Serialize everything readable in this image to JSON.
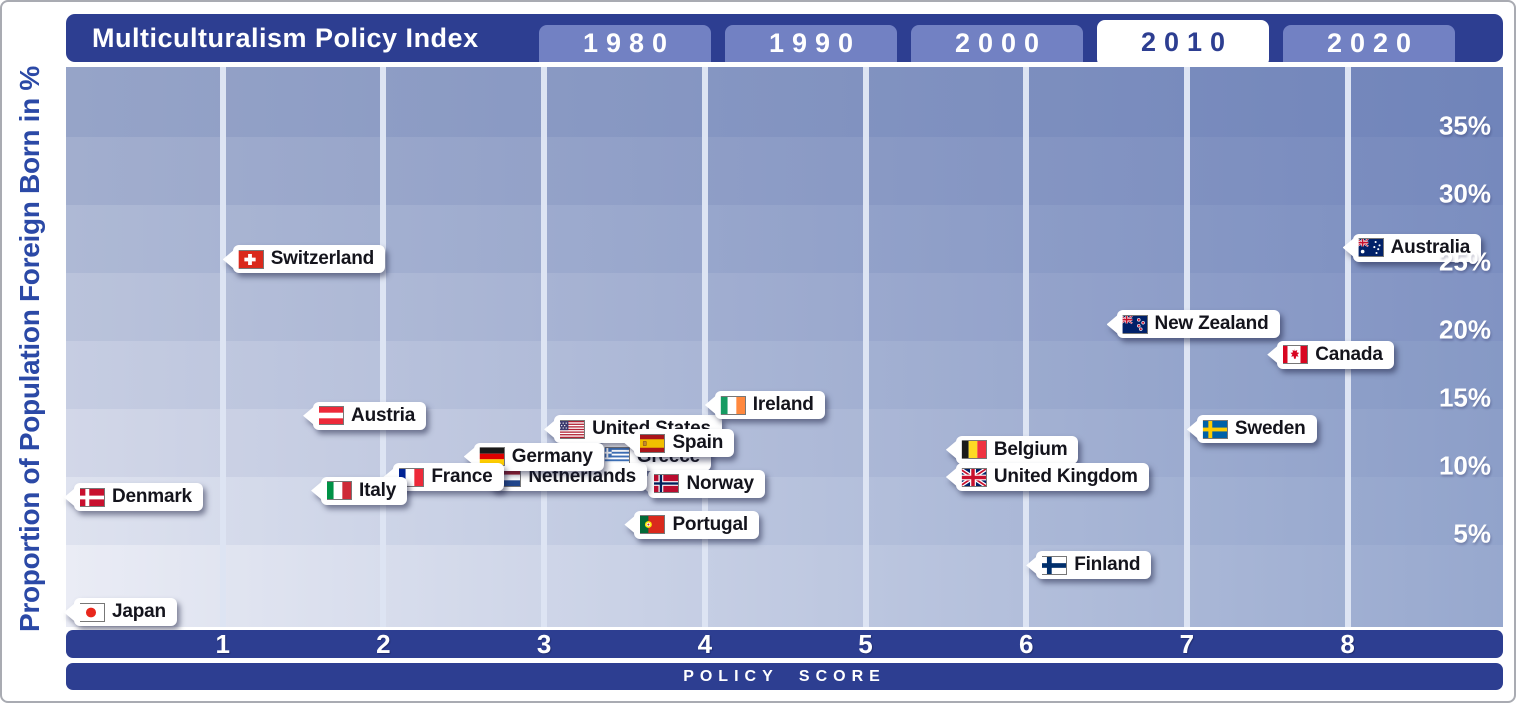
{
  "header": {
    "title": "Multiculturalism Policy Index",
    "tabs": [
      {
        "label": "1980",
        "selected": false
      },
      {
        "label": "1990",
        "selected": false
      },
      {
        "label": "2000",
        "selected": false
      },
      {
        "label": "2010",
        "selected": true
      },
      {
        "label": "2020",
        "selected": false
      }
    ]
  },
  "y_axis": {
    "title": "Proportion of Population Foreign Born in %",
    "ticks": [
      {
        "label": "35%",
        "value": 35
      },
      {
        "label": "30%",
        "value": 30
      },
      {
        "label": "25%",
        "value": 25
      },
      {
        "label": "20%",
        "value": 20
      },
      {
        "label": "15%",
        "value": 15
      },
      {
        "label": "10%",
        "value": 10
      },
      {
        "label": "5%",
        "value": 5
      }
    ]
  },
  "x_axis": {
    "title": "POLICY SCORE",
    "ticks": [
      {
        "label": "1",
        "value": 1
      },
      {
        "label": "2",
        "value": 2
      },
      {
        "label": "3",
        "value": 3
      },
      {
        "label": "4",
        "value": 4
      },
      {
        "label": "5",
        "value": 5
      },
      {
        "label": "6",
        "value": 6
      },
      {
        "label": "7",
        "value": 7
      },
      {
        "label": "8",
        "value": 8
      }
    ]
  },
  "chart_data": {
    "type": "scatter",
    "title": "Multiculturalism Policy Index",
    "selected_year": "2010",
    "xlabel": "POLICY SCORE",
    "ylabel": "Proportion of Population Foreign Born in %",
    "xlim": [
      0,
      8.95
    ],
    "ylim": [
      0,
      41
    ],
    "x_gridlines": [
      1,
      2,
      3,
      4,
      5,
      6,
      7,
      8
    ],
    "y_gridlines": [
      5,
      10,
      15,
      20,
      25,
      30,
      35
    ],
    "legend": "none",
    "points": [
      {
        "name": "Greece",
        "flag": "gr",
        "score": 2.5,
        "pct": 11.5,
        "label_dx": 125
      },
      {
        "name": "Norway",
        "flag": "no",
        "score": 3.5,
        "pct": 9.5,
        "label_dx": 14
      },
      {
        "name": "Netherlands",
        "flag": "nl",
        "score": 2,
        "pct": 10,
        "label_dx": 97
      },
      {
        "name": "United States",
        "flag": "us",
        "score": 3,
        "pct": 13.5
      },
      {
        "name": "Spain",
        "flag": "es",
        "score": 3.5,
        "pct": 12.5
      },
      {
        "name": "Germany",
        "flag": "de",
        "score": 2.5,
        "pct": 11.5
      },
      {
        "name": "France",
        "flag": "fr",
        "score": 2,
        "pct": 10
      },
      {
        "name": "Italy",
        "flag": "it",
        "score": 1.5,
        "pct": 9,
        "label_dx": 8
      },
      {
        "name": "Austria",
        "flag": "at",
        "score": 1.5,
        "pct": 14.5
      },
      {
        "name": "Switzerland",
        "flag": "ch",
        "score": 1,
        "pct": 26
      },
      {
        "name": "Denmark",
        "flag": "dk",
        "score": 0,
        "pct": 8.5
      },
      {
        "name": "Japan",
        "flag": "jp",
        "score": 0,
        "pct": 1,
        "label_dy": 13
      },
      {
        "name": "Portugal",
        "flag": "pt",
        "score": 3.5,
        "pct": 6.5
      },
      {
        "name": "Ireland",
        "flag": "ie",
        "score": 4,
        "pct": 15,
        "label_dy": -4
      },
      {
        "name": "Belgium",
        "flag": "be",
        "score": 5.5,
        "pct": 12
      },
      {
        "name": "United Kingdom",
        "flag": "gb",
        "score": 5.5,
        "pct": 10
      },
      {
        "name": "Finland",
        "flag": "fi",
        "score": 6,
        "pct": 3.5
      },
      {
        "name": "New Zealand",
        "flag": "nz",
        "score": 6.5,
        "pct": 21,
        "label_dy": -3
      },
      {
        "name": "Sweden",
        "flag": "se",
        "score": 7,
        "pct": 13.5
      },
      {
        "name": "Canada",
        "flag": "ca",
        "score": 7.5,
        "pct": 19
      },
      {
        "name": "Australia",
        "flag": "au",
        "score": 8,
        "pct": 26.5,
        "label_dx": -5,
        "label_dy": -5
      }
    ]
  },
  "colors": {
    "navy": "#2d3e91",
    "tab_blue": "#7281c3",
    "selected_tab_text": "#2d3e91",
    "gridline": "#dde4f3",
    "axis_title_blue": "#2b49a6",
    "label_text": "#14141c",
    "band_top_left": "#96a4c8",
    "band_bottom_left": "#eaecf5",
    "band_top_right": "#7084ba",
    "band_bottom_right": "#97a8ce"
  }
}
